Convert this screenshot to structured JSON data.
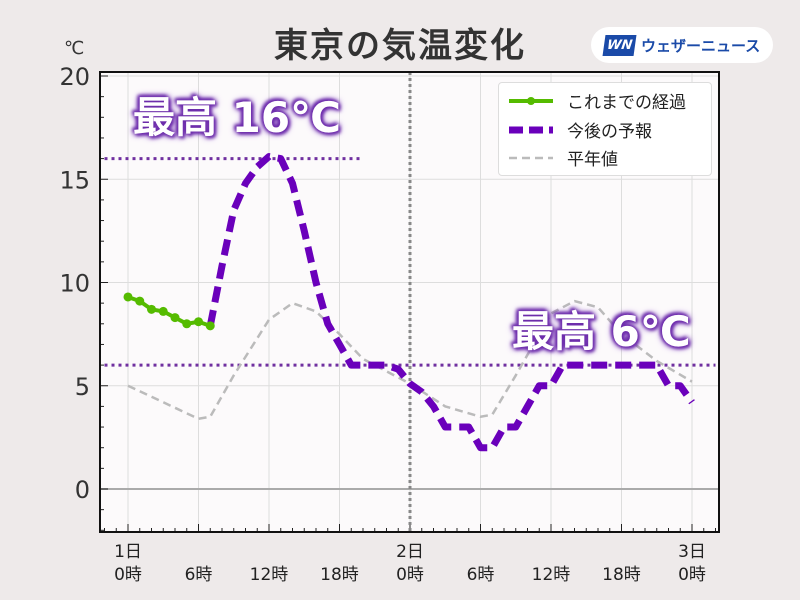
{
  "title": "東京の気温変化",
  "logo": {
    "mark": "WN",
    "text": "ウェザーニュース"
  },
  "annotations": {
    "max_day1": "最高 16℃",
    "max_day2": "最高 6℃"
  },
  "chart_data": {
    "type": "line",
    "title": "東京の気温変化",
    "ylabel": "℃",
    "ylim": [
      -2,
      20
    ],
    "xlim": [
      -2,
      50
    ],
    "yticks": [
      0,
      5,
      10,
      15,
      20
    ],
    "xticks": [
      {
        "h": 0,
        "label": [
          "1日",
          "0時"
        ]
      },
      {
        "h": 6,
        "label": [
          "",
          "6時"
        ]
      },
      {
        "h": 12,
        "label": [
          "",
          "12時"
        ]
      },
      {
        "h": 18,
        "label": [
          "",
          "18時"
        ]
      },
      {
        "h": 24,
        "label": [
          "2日",
          "0時"
        ]
      },
      {
        "h": 30,
        "label": [
          "",
          "6時"
        ]
      },
      {
        "h": 36,
        "label": [
          "",
          "12時"
        ]
      },
      {
        "h": 42,
        "label": [
          "",
          "18時"
        ]
      },
      {
        "h": 48,
        "label": [
          "3日",
          "0時"
        ]
      }
    ],
    "grid": true,
    "legend_position": "top-right",
    "max_lines": [
      {
        "value": 16,
        "from": -2,
        "to": 20
      },
      {
        "value": 6,
        "from": -2,
        "to": 50
      }
    ],
    "series": [
      {
        "name": "これまでの経過",
        "color": "#55bb00",
        "x": [
          0,
          1,
          2,
          3,
          4,
          5,
          6,
          7
        ],
        "y": [
          9.3,
          9.1,
          8.7,
          8.6,
          8.3,
          8.0,
          8.1,
          7.9
        ]
      },
      {
        "name": "今後の予報",
        "color": "#6a00bb",
        "x": [
          7,
          8,
          9,
          10,
          11,
          12,
          13,
          14,
          15,
          16,
          17,
          18,
          19,
          20,
          21,
          22,
          23,
          24,
          25,
          26,
          27,
          28,
          29,
          30,
          31,
          32,
          33,
          34,
          35,
          36,
          37,
          38,
          39,
          40,
          41,
          42,
          43,
          44,
          45,
          46,
          47,
          48
        ],
        "y": [
          7.9,
          10.8,
          13.5,
          14.8,
          15.6,
          16.1,
          16,
          14.8,
          12.5,
          10,
          8,
          7,
          6,
          6,
          6,
          6,
          5.8,
          5.1,
          4.7,
          4,
          3,
          3,
          3,
          2,
          2,
          3,
          3,
          4,
          5,
          5,
          6,
          6,
          6,
          6,
          6,
          6,
          6,
          6,
          6,
          5,
          5,
          4.2
        ]
      },
      {
        "name": "平年値",
        "color": "#bbbbbb",
        "x": [
          0,
          3,
          6,
          7,
          9,
          12,
          14,
          16,
          18,
          20,
          24,
          27,
          30,
          31,
          33,
          36,
          38,
          40,
          42,
          45,
          48
        ],
        "y": [
          5,
          4.2,
          3.4,
          3.5,
          5.5,
          8.2,
          9,
          8.6,
          7.5,
          6.3,
          5.1,
          4,
          3.5,
          3.6,
          5.5,
          8.5,
          9.1,
          8.8,
          7.5,
          6.2,
          5.2
        ]
      }
    ]
  }
}
